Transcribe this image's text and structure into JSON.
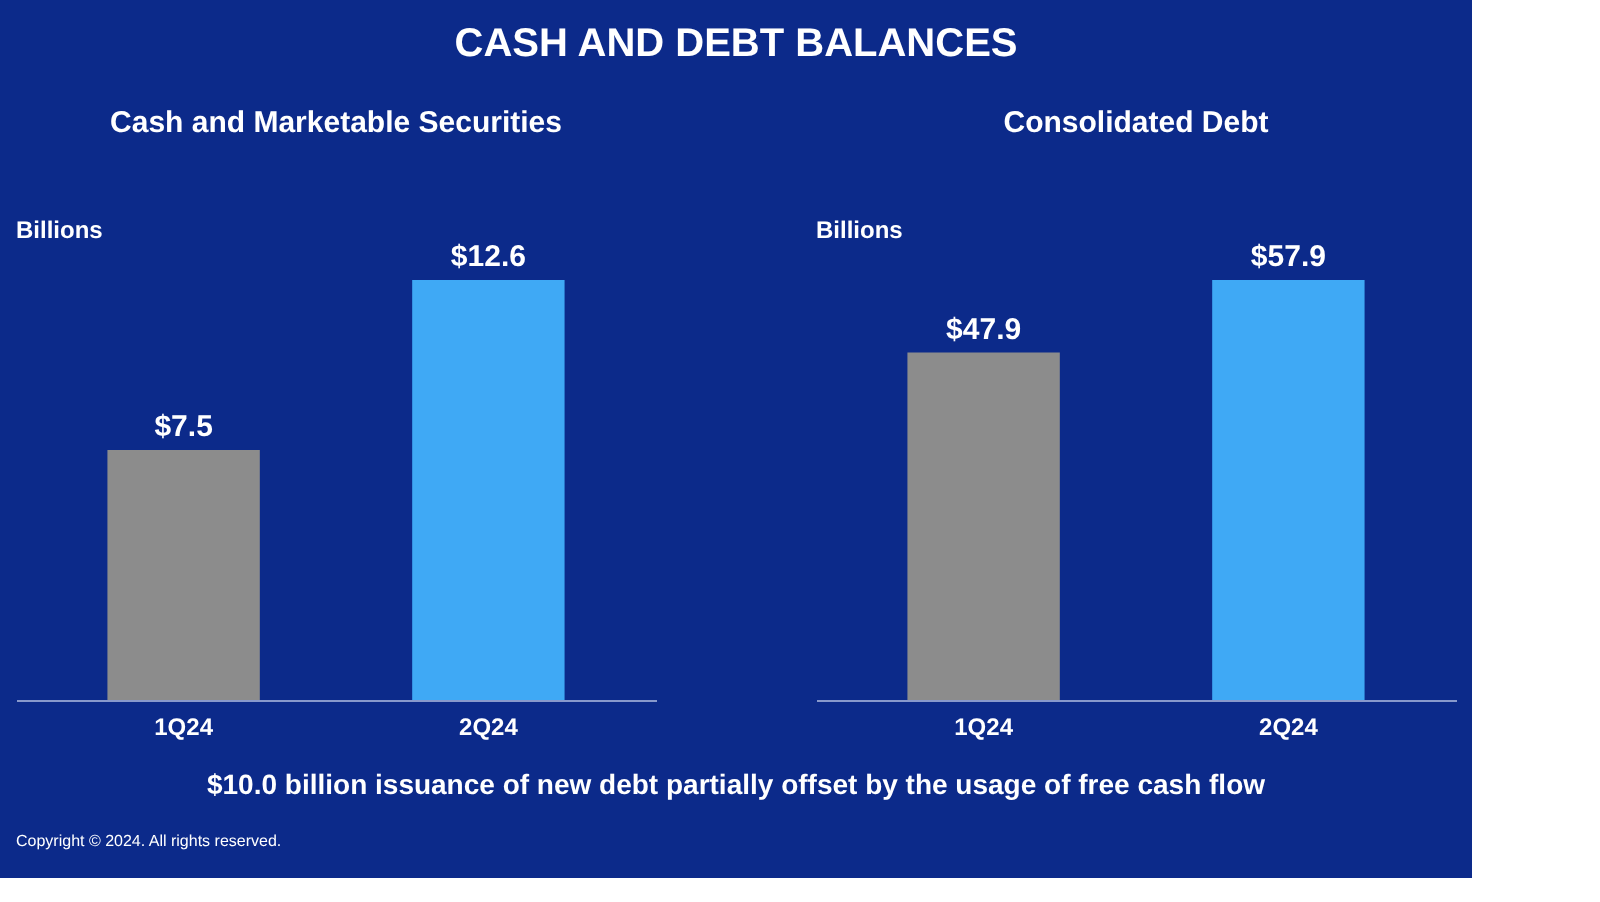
{
  "chart_data": [
    {
      "type": "other",
      "title": "CASH AND DEBT BALANCES"
    },
    {
      "type": "bar",
      "title": "Cash and Marketable Securities",
      "ylabel": "Billions",
      "categories": [
        "1Q24",
        "2Q24"
      ],
      "colors": [
        "#8c8c8c",
        "#3fa9f5"
      ],
      "values": [
        7.5,
        12.6
      ],
      "value_labels": [
        "$7.5",
        "$12.6"
      ]
    },
    {
      "type": "bar",
      "title": "Consolidated Debt",
      "ylabel": "Billions",
      "categories": [
        "1Q24",
        "2Q24"
      ],
      "colors": [
        "#8c8c8c",
        "#3fa9f5"
      ],
      "values": [
        47.9,
        57.9
      ],
      "value_labels": [
        "$47.9",
        "$57.9"
      ]
    },
    {
      "type": "other",
      "annotations": [
        "$10.0 billion issuance of new debt partially offset by the usage of free cash flow",
        "Copyright © 2024. All rights reserved."
      ]
    }
  ]
}
